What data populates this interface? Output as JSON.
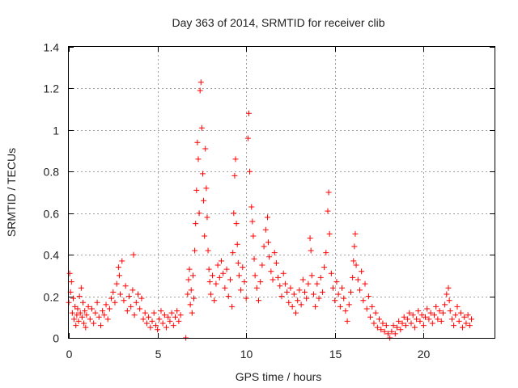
{
  "chart_data": {
    "type": "scatter",
    "title": "Day 363 of 2014, SRMTID for receiver clib",
    "xlabel": "GPS time / hours",
    "ylabel": "SRMTID / TECUs",
    "xlim": [
      0,
      24
    ],
    "ylim": [
      0,
      1.4
    ],
    "xticks": [
      0,
      5,
      10,
      15,
      20
    ],
    "xtick_labels": [
      "0",
      "5",
      "10",
      "15",
      "20"
    ],
    "yticks": [
      0,
      0.2,
      0.4,
      0.6,
      0.8,
      1,
      1.2,
      1.4
    ],
    "ytick_labels": [
      "0",
      "0.2",
      "0.4",
      "0.6",
      "0.8",
      "1",
      "1.2",
      "1.4"
    ],
    "grid": true,
    "marker": "+",
    "color": "#ff0000",
    "series": [
      {
        "name": "SRMTID",
        "points": [
          [
            0.0,
            0.17
          ],
          [
            0.05,
            0.31
          ],
          [
            0.1,
            0.22
          ],
          [
            0.15,
            0.27
          ],
          [
            0.2,
            0.12
          ],
          [
            0.25,
            0.19
          ],
          [
            0.3,
            0.09
          ],
          [
            0.35,
            0.15
          ],
          [
            0.4,
            0.06
          ],
          [
            0.45,
            0.11
          ],
          [
            0.5,
            0.14
          ],
          [
            0.55,
            0.08
          ],
          [
            0.6,
            0.2
          ],
          [
            0.65,
            0.12
          ],
          [
            0.7,
            0.24
          ],
          [
            0.75,
            0.1
          ],
          [
            0.8,
            0.17
          ],
          [
            0.85,
            0.07
          ],
          [
            0.9,
            0.13
          ],
          [
            0.95,
            0.05
          ],
          [
            1.0,
            0.11
          ],
          [
            1.1,
            0.15
          ],
          [
            1.2,
            0.09
          ],
          [
            1.3,
            0.14
          ],
          [
            1.4,
            0.07
          ],
          [
            1.5,
            0.12
          ],
          [
            1.6,
            0.17
          ],
          [
            1.7,
            0.1
          ],
          [
            1.8,
            0.06
          ],
          [
            1.9,
            0.13
          ],
          [
            2.0,
            0.11
          ],
          [
            2.1,
            0.16
          ],
          [
            2.2,
            0.09
          ],
          [
            2.3,
            0.14
          ],
          [
            2.4,
            0.19
          ],
          [
            2.5,
            0.22
          ],
          [
            2.6,
            0.17
          ],
          [
            2.7,
            0.26
          ],
          [
            2.8,
            0.34
          ],
          [
            2.85,
            0.3
          ],
          [
            2.9,
            0.21
          ],
          [
            3.0,
            0.37
          ],
          [
            3.1,
            0.18
          ],
          [
            3.2,
            0.25
          ],
          [
            3.3,
            0.13
          ],
          [
            3.4,
            0.2
          ],
          [
            3.5,
            0.15
          ],
          [
            3.6,
            0.23
          ],
          [
            3.65,
            0.4
          ],
          [
            3.7,
            0.11
          ],
          [
            3.8,
            0.17
          ],
          [
            3.9,
            0.21
          ],
          [
            4.0,
            0.14
          ],
          [
            4.1,
            0.19
          ],
          [
            4.2,
            0.09
          ],
          [
            4.3,
            0.12
          ],
          [
            4.4,
            0.07
          ],
          [
            4.5,
            0.1
          ],
          [
            4.6,
            0.05
          ],
          [
            4.7,
            0.08
          ],
          [
            4.8,
            0.12
          ],
          [
            4.9,
            0.06
          ],
          [
            5.0,
            0.04
          ],
          [
            5.1,
            0.09
          ],
          [
            5.2,
            0.13
          ],
          [
            5.3,
            0.07
          ],
          [
            5.4,
            0.11
          ],
          [
            5.5,
            0.05
          ],
          [
            5.6,
            0.1
          ],
          [
            5.7,
            0.08
          ],
          [
            5.8,
            0.12
          ],
          [
            5.9,
            0.06
          ],
          [
            6.0,
            0.1
          ],
          [
            6.1,
            0.13
          ],
          [
            6.2,
            0.08
          ],
          [
            6.3,
            0.11
          ],
          [
            6.6,
            0.0
          ],
          [
            6.7,
            0.21
          ],
          [
            6.75,
            0.28
          ],
          [
            6.8,
            0.33
          ],
          [
            6.85,
            0.16
          ],
          [
            6.9,
            0.23
          ],
          [
            6.95,
            0.12
          ],
          [
            7.0,
            0.3
          ],
          [
            7.05,
            0.19
          ],
          [
            7.1,
            0.42
          ],
          [
            7.15,
            0.55
          ],
          [
            7.2,
            0.71
          ],
          [
            7.25,
            0.94
          ],
          [
            7.3,
            0.86
          ],
          [
            7.35,
            0.6
          ],
          [
            7.4,
            1.19
          ],
          [
            7.45,
            1.23
          ],
          [
            7.5,
            1.01
          ],
          [
            7.55,
            0.79
          ],
          [
            7.6,
            0.66
          ],
          [
            7.65,
            0.49
          ],
          [
            7.7,
            0.91
          ],
          [
            7.75,
            0.72
          ],
          [
            7.8,
            0.58
          ],
          [
            7.85,
            0.42
          ],
          [
            7.9,
            0.33
          ],
          [
            7.95,
            0.27
          ],
          [
            8.0,
            0.21
          ],
          [
            8.1,
            0.3
          ],
          [
            8.2,
            0.18
          ],
          [
            8.3,
            0.26
          ],
          [
            8.4,
            0.35
          ],
          [
            8.5,
            0.29
          ],
          [
            8.6,
            0.37
          ],
          [
            8.7,
            0.31
          ],
          [
            8.8,
            0.24
          ],
          [
            8.9,
            0.33
          ],
          [
            9.0,
            0.2
          ],
          [
            9.1,
            0.28
          ],
          [
            9.2,
            0.15
          ],
          [
            9.25,
            0.41
          ],
          [
            9.3,
            0.6
          ],
          [
            9.35,
            0.78
          ],
          [
            9.4,
            0.86
          ],
          [
            9.45,
            0.55
          ],
          [
            9.5,
            0.45
          ],
          [
            9.55,
            0.36
          ],
          [
            9.6,
            0.3
          ],
          [
            9.7,
            0.23
          ],
          [
            9.8,
            0.34
          ],
          [
            9.9,
            0.27
          ],
          [
            10.0,
            0.19
          ],
          [
            10.1,
            0.96
          ],
          [
            10.15,
            1.08
          ],
          [
            10.2,
            0.8
          ],
          [
            10.3,
            0.63
          ],
          [
            10.35,
            0.56
          ],
          [
            10.4,
            0.49
          ],
          [
            10.45,
            0.38
          ],
          [
            10.5,
            0.3
          ],
          [
            10.6,
            0.24
          ],
          [
            10.7,
            0.18
          ],
          [
            10.8,
            0.27
          ],
          [
            10.9,
            0.35
          ],
          [
            11.0,
            0.44
          ],
          [
            11.1,
            0.52
          ],
          [
            11.2,
            0.58
          ],
          [
            11.25,
            0.46
          ],
          [
            11.3,
            0.39
          ],
          [
            11.4,
            0.32
          ],
          [
            11.5,
            0.28
          ],
          [
            11.6,
            0.41
          ],
          [
            11.7,
            0.36
          ],
          [
            11.8,
            0.29
          ],
          [
            11.9,
            0.25
          ],
          [
            12.0,
            0.2
          ],
          [
            12.1,
            0.31
          ],
          [
            12.2,
            0.26
          ],
          [
            12.3,
            0.22
          ],
          [
            12.4,
            0.17
          ],
          [
            12.5,
            0.24
          ],
          [
            12.6,
            0.15
          ],
          [
            12.7,
            0.21
          ],
          [
            12.8,
            0.12
          ],
          [
            12.9,
            0.18
          ],
          [
            13.0,
            0.23
          ],
          [
            13.1,
            0.16
          ],
          [
            13.2,
            0.28
          ],
          [
            13.3,
            0.22
          ],
          [
            13.4,
            0.19
          ],
          [
            13.5,
            0.26
          ],
          [
            13.6,
            0.48
          ],
          [
            13.65,
            0.42
          ],
          [
            13.7,
            0.3
          ],
          [
            13.8,
            0.21
          ],
          [
            13.9,
            0.15
          ],
          [
            14.0,
            0.26
          ],
          [
            14.1,
            0.19
          ],
          [
            14.2,
            0.29
          ],
          [
            14.3,
            0.22
          ],
          [
            14.4,
            0.34
          ],
          [
            14.5,
            0.41
          ],
          [
            14.6,
            0.61
          ],
          [
            14.65,
            0.7
          ],
          [
            14.7,
            0.5
          ],
          [
            14.8,
            0.31
          ],
          [
            14.9,
            0.24
          ],
          [
            15.0,
            0.18
          ],
          [
            15.1,
            0.27
          ],
          [
            15.2,
            0.21
          ],
          [
            15.3,
            0.15
          ],
          [
            15.4,
            0.24
          ],
          [
            15.5,
            0.19
          ],
          [
            15.6,
            0.13
          ],
          [
            15.7,
            0.08
          ],
          [
            15.8,
            0.16
          ],
          [
            15.9,
            0.22
          ],
          [
            16.0,
            0.29
          ],
          [
            16.05,
            0.37
          ],
          [
            16.1,
            0.44
          ],
          [
            16.15,
            0.5
          ],
          [
            16.2,
            0.35
          ],
          [
            16.3,
            0.28
          ],
          [
            16.4,
            0.23
          ],
          [
            16.5,
            0.32
          ],
          [
            16.6,
            0.18
          ],
          [
            16.7,
            0.26
          ],
          [
            16.8,
            0.14
          ],
          [
            16.9,
            0.2
          ],
          [
            17.0,
            0.1
          ],
          [
            17.1,
            0.15
          ],
          [
            17.2,
            0.07
          ],
          [
            17.3,
            0.12
          ],
          [
            17.4,
            0.05
          ],
          [
            17.5,
            0.09
          ],
          [
            17.6,
            0.04
          ],
          [
            17.7,
            0.07
          ],
          [
            17.8,
            0.03
          ],
          [
            17.9,
            0.06
          ],
          [
            18.0,
            0.02
          ],
          [
            18.1,
            0.0
          ],
          [
            18.2,
            0.03
          ],
          [
            18.3,
            0.06
          ],
          [
            18.4,
            0.02
          ],
          [
            18.5,
            0.05
          ],
          [
            18.6,
            0.08
          ],
          [
            18.7,
            0.04
          ],
          [
            18.8,
            0.07
          ],
          [
            18.9,
            0.1
          ],
          [
            19.0,
            0.06
          ],
          [
            19.1,
            0.09
          ],
          [
            19.2,
            0.12
          ],
          [
            19.3,
            0.07
          ],
          [
            19.4,
            0.11
          ],
          [
            19.5,
            0.05
          ],
          [
            19.6,
            0.09
          ],
          [
            19.7,
            0.13
          ],
          [
            19.8,
            0.08
          ],
          [
            19.9,
            0.11
          ],
          [
            20.0,
            0.06
          ],
          [
            20.1,
            0.1
          ],
          [
            20.2,
            0.14
          ],
          [
            20.3,
            0.09
          ],
          [
            20.4,
            0.12
          ],
          [
            20.5,
            0.07
          ],
          [
            20.6,
            0.11
          ],
          [
            20.7,
            0.15
          ],
          [
            20.8,
            0.09
          ],
          [
            20.9,
            0.13
          ],
          [
            21.0,
            0.08
          ],
          [
            21.1,
            0.12
          ],
          [
            21.2,
            0.16
          ],
          [
            21.3,
            0.21
          ],
          [
            21.4,
            0.24
          ],
          [
            21.45,
            0.18
          ],
          [
            21.5,
            0.13
          ],
          [
            21.6,
            0.09
          ],
          [
            21.7,
            0.06
          ],
          [
            21.8,
            0.11
          ],
          [
            21.9,
            0.15
          ],
          [
            22.0,
            0.08
          ],
          [
            22.1,
            0.12
          ],
          [
            22.2,
            0.05
          ],
          [
            22.3,
            0.1
          ],
          [
            22.4,
            0.07
          ],
          [
            22.5,
            0.11
          ],
          [
            22.6,
            0.06
          ],
          [
            22.7,
            0.09
          ]
        ]
      }
    ]
  }
}
